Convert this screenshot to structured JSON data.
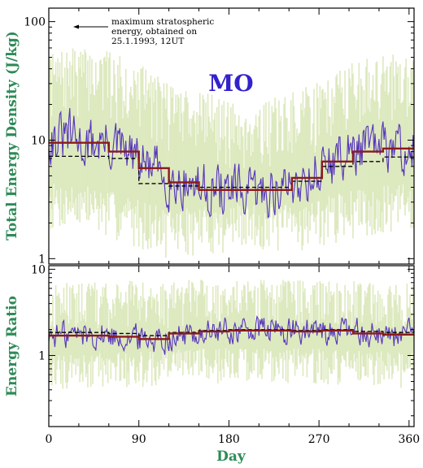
{
  "colors": {
    "band": "#dde9bf",
    "daily": "#5533bb",
    "step": "#8b1a1a",
    "mean": "#000000",
    "axis_title": "#2e8b57",
    "station": "#3322cc"
  },
  "station_label": "MO",
  "annotation": {
    "line1": "maximum stratospheric",
    "line2": "energy,      obtained      on",
    "line3": "25.1.1993, 12UT"
  },
  "chart_data": [
    {
      "type": "line",
      "panel": "top",
      "ylabel": "Total Energy Density (J/kg)",
      "yscale": "log",
      "ylim": [
        0.9,
        130
      ],
      "xlim": [
        0,
        365
      ],
      "yticks": [
        1,
        10,
        100
      ],
      "ytick_labels": [
        "1",
        "10",
        "100"
      ],
      "series": [
        {
          "style": "steps",
          "segments": [
            {
              "x0": 0,
              "x1": 60,
              "y": 9.5
            },
            {
              "x0": 60,
              "x1": 90,
              "y": 8.0
            },
            {
              "x0": 90,
              "x1": 120,
              "y": 5.8
            },
            {
              "x0": 120,
              "x1": 150,
              "y": 4.4
            },
            {
              "x0": 150,
              "x1": 243,
              "y": 3.8
            },
            {
              "x0": 243,
              "x1": 273,
              "y": 4.8
            },
            {
              "x0": 273,
              "x1": 304,
              "y": 6.6
            },
            {
              "x0": 304,
              "x1": 334,
              "y": 8.0
            },
            {
              "x0": 334,
              "x1": 365,
              "y": 8.5
            }
          ]
        },
        {
          "style": "dashed-steps",
          "segments": [
            {
              "x0": 0,
              "x1": 60,
              "y": 7.3
            },
            {
              "x0": 60,
              "x1": 90,
              "y": 7.0
            },
            {
              "x0": 90,
              "x1": 120,
              "y": 4.3
            },
            {
              "x0": 120,
              "x1": 150,
              "y": 4.1
            },
            {
              "x0": 150,
              "x1": 243,
              "y": 4.0
            },
            {
              "x0": 243,
              "x1": 273,
              "y": 4.5
            },
            {
              "x0": 273,
              "x1": 304,
              "y": 6.0
            },
            {
              "x0": 304,
              "x1": 334,
              "y": 6.6
            },
            {
              "x0": 334,
              "x1": 365,
              "y": 7.2
            }
          ]
        },
        {
          "style": "daily-curve",
          "x": [
            0,
            10,
            20,
            30,
            40,
            50,
            60,
            70,
            80,
            90,
            100,
            110,
            120,
            130,
            140,
            150,
            160,
            170,
            180,
            190,
            200,
            210,
            220,
            230,
            240,
            250,
            260,
            270,
            280,
            290,
            300,
            310,
            320,
            330,
            340,
            350,
            360,
            365
          ],
          "y": [
            11,
            10,
            11,
            9.5,
            9,
            10,
            9,
            8.5,
            7.5,
            6.5,
            6,
            5.5,
            4.5,
            4.5,
            4.3,
            4,
            3.9,
            3.8,
            3.7,
            3.6,
            3.5,
            3.6,
            3.7,
            3.8,
            4,
            4.5,
            5,
            5.5,
            6.5,
            7,
            8,
            8.5,
            9,
            8,
            9,
            8.5,
            8,
            8.5
          ],
          "variability": 0.16
        },
        {
          "style": "band",
          "x": [
            0,
            30,
            60,
            90,
            120,
            150,
            180,
            210,
            240,
            270,
            300,
            330,
            365
          ],
          "low": [
            3.0,
            3.0,
            2.6,
            2.2,
            1.8,
            1.9,
            2.0,
            2.0,
            2.0,
            2.2,
            2.6,
            2.8,
            3.0
          ],
          "high": [
            30,
            35,
            32,
            25,
            18,
            16,
            12,
            12,
            14,
            18,
            26,
            30,
            32
          ]
        }
      ]
    },
    {
      "type": "line",
      "panel": "bottom",
      "xlabel": "Day",
      "ylabel": "Energy Ratio",
      "yscale": "log",
      "ylim": [
        0.15,
        11
      ],
      "xlim": [
        0,
        365
      ],
      "xticks": [
        0,
        90,
        180,
        270,
        360
      ],
      "xtick_labels": [
        "0",
        "90",
        "180",
        "270",
        "360"
      ],
      "yticks": [
        1,
        10
      ],
      "ytick_labels": [
        "1",
        "10"
      ],
      "series": [
        {
          "style": "steps",
          "segments": [
            {
              "x0": 0,
              "x1": 60,
              "y": 1.7
            },
            {
              "x0": 60,
              "x1": 90,
              "y": 1.65
            },
            {
              "x0": 90,
              "x1": 120,
              "y": 1.55
            },
            {
              "x0": 120,
              "x1": 150,
              "y": 1.8
            },
            {
              "x0": 150,
              "x1": 180,
              "y": 1.9
            },
            {
              "x0": 180,
              "x1": 243,
              "y": 1.95
            },
            {
              "x0": 243,
              "x1": 273,
              "y": 1.9
            },
            {
              "x0": 273,
              "x1": 304,
              "y": 1.95
            },
            {
              "x0": 304,
              "x1": 334,
              "y": 1.8
            },
            {
              "x0": 334,
              "x1": 365,
              "y": 1.75
            }
          ]
        },
        {
          "style": "dashed-steps",
          "segments": [
            {
              "x0": 0,
              "x1": 60,
              "y": 1.85
            },
            {
              "x0": 60,
              "x1": 90,
              "y": 1.8
            },
            {
              "x0": 90,
              "x1": 120,
              "y": 1.7
            },
            {
              "x0": 120,
              "x1": 150,
              "y": 1.85
            },
            {
              "x0": 150,
              "x1": 180,
              "y": 1.95
            },
            {
              "x0": 180,
              "x1": 243,
              "y": 2.0
            },
            {
              "x0": 243,
              "x1": 273,
              "y": 1.95
            },
            {
              "x0": 273,
              "x1": 304,
              "y": 2.0
            },
            {
              "x0": 304,
              "x1": 334,
              "y": 1.9
            },
            {
              "x0": 334,
              "x1": 365,
              "y": 1.85
            }
          ]
        },
        {
          "style": "daily-curve",
          "x": [
            0,
            30,
            60,
            90,
            120,
            150,
            180,
            210,
            240,
            270,
            300,
            330,
            365
          ],
          "y": [
            1.7,
            1.8,
            1.7,
            1.6,
            1.6,
            1.8,
            1.9,
            2.0,
            1.9,
            1.9,
            1.9,
            1.8,
            1.75
          ],
          "variability": 0.12
        },
        {
          "style": "band",
          "x": [
            0,
            60,
            120,
            180,
            240,
            300,
            365
          ],
          "low": [
            0.7,
            0.75,
            0.8,
            0.85,
            0.85,
            0.8,
            0.75
          ],
          "high": [
            4.0,
            4.2,
            4.2,
            4.5,
            4.3,
            4.2,
            4.0
          ]
        }
      ]
    }
  ]
}
